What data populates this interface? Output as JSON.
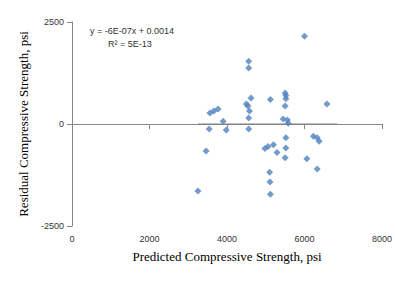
{
  "chart_data": {
    "type": "scatter",
    "xlabel": "Predicted Compressive Strength, psi",
    "ylabel": "Residual Compressive Strength, psi",
    "annotations": [
      "y = -6E-07x + 0.0014",
      "R² = 5E-13"
    ],
    "xlim": [
      0,
      8000
    ],
    "xticks": [
      0,
      2000,
      4000,
      6000,
      8000
    ],
    "ylim": [
      -2500,
      2500
    ],
    "yticks": [
      -2500,
      0,
      2500
    ],
    "grid": false,
    "series": [
      {
        "type": "scatter",
        "color": "#4f81bd",
        "marker": "diamond",
        "x": [
          3250,
          3460,
          3540,
          3560,
          3660,
          3770,
          3900,
          3980,
          4560,
          4560,
          4500,
          4540,
          4580,
          4620,
          4560,
          4560,
          4980,
          5060,
          5120,
          5100,
          5110,
          5120,
          5200,
          5290,
          5500,
          5520,
          5520,
          5500,
          5450,
          5560,
          5520,
          5520,
          5500,
          5580,
          6000,
          6060,
          6230,
          6330,
          6380,
          6330,
          6580
        ],
        "values": [
          -1640,
          -660,
          -120,
          270,
          320,
          370,
          70,
          -150,
          1540,
          1370,
          490,
          440,
          320,
          640,
          150,
          -120,
          -600,
          -550,
          600,
          -1180,
          -1420,
          -1720,
          -510,
          -700,
          760,
          700,
          620,
          440,
          120,
          100,
          -340,
          -590,
          -830,
          20,
          2150,
          -850,
          -300,
          -340,
          -420,
          -1100,
          490
        ]
      },
      {
        "type": "line",
        "color": "#808080",
        "line_style": "solid",
        "x": [
          3250,
          6850
        ],
        "values": [
          0,
          0
        ]
      }
    ]
  }
}
